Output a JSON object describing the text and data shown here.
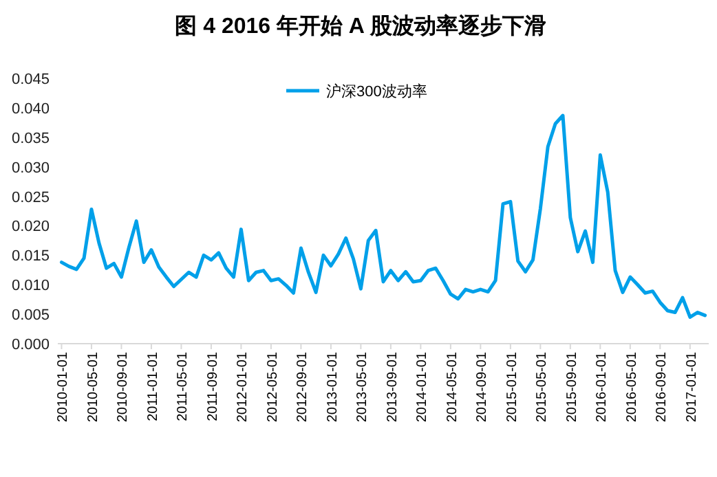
{
  "chart_data": {
    "type": "line",
    "title": "图 4 2016 年开始 A 股波动率逐步下滑",
    "categories": [
      "2010-01-01",
      null,
      null,
      null,
      "2010-05-01",
      null,
      null,
      null,
      "2010-09-01",
      null,
      null,
      null,
      "2011-01-01",
      null,
      null,
      null,
      "2011-05-01",
      null,
      null,
      null,
      "2011-09-01",
      null,
      null,
      null,
      "2012-01-01",
      null,
      null,
      null,
      "2012-05-01",
      null,
      null,
      null,
      "2012-09-01",
      null,
      null,
      null,
      "2013-01-01",
      null,
      null,
      null,
      "2013-05-01",
      null,
      null,
      null,
      "2013-09-01",
      null,
      null,
      null,
      "2014-01-01",
      null,
      null,
      null,
      "2014-05-01",
      null,
      null,
      null,
      "2014-09-01",
      null,
      null,
      null,
      "2015-01-01",
      null,
      null,
      null,
      "2015-05-01",
      null,
      null,
      null,
      "2015-09-01",
      null,
      null,
      null,
      "2016-01-01",
      null,
      null,
      null,
      "2016-05-01",
      null,
      null,
      null,
      "2016-09-01",
      null,
      null,
      null,
      "2017-01-01",
      null,
      null
    ],
    "series": [
      {
        "name": "沪深300波动率",
        "color": "#00a0e9",
        "values": [
          0.0138,
          0.0131,
          0.0126,
          0.0145,
          0.0228,
          0.0171,
          0.0128,
          0.0136,
          0.0113,
          0.0163,
          0.0208,
          0.0138,
          0.0159,
          0.013,
          0.0113,
          0.0097,
          0.0109,
          0.0121,
          0.0113,
          0.015,
          0.0142,
          0.0154,
          0.0128,
          0.0113,
          0.0194,
          0.0107,
          0.0121,
          0.0124,
          0.0107,
          0.011,
          0.0099,
          0.0086,
          0.0162,
          0.0121,
          0.0087,
          0.015,
          0.0132,
          0.0152,
          0.0179,
          0.0144,
          0.0093,
          0.0175,
          0.0192,
          0.0105,
          0.0124,
          0.0107,
          0.0122,
          0.0105,
          0.0107,
          0.0124,
          0.0128,
          0.0107,
          0.0084,
          0.0076,
          0.0092,
          0.0088,
          0.0092,
          0.0088,
          0.0107,
          0.0237,
          0.0241,
          0.014,
          0.0122,
          0.0142,
          0.0229,
          0.0334,
          0.0373,
          0.0387,
          0.0214,
          0.0156,
          0.0191,
          0.0138,
          0.032,
          0.0257,
          0.0124,
          0.0087,
          0.0113,
          0.01,
          0.0086,
          0.0089,
          0.007,
          0.0056,
          0.0053,
          0.0078,
          0.0045,
          0.0053,
          0.0048
        ]
      }
    ],
    "ylim": [
      0,
      0.045
    ],
    "yticks": [
      {
        "value": 0,
        "label": "0.000"
      },
      {
        "value": 0.005,
        "label": "0.005"
      },
      {
        "value": 0.01,
        "label": "0.010"
      },
      {
        "value": 0.015,
        "label": "0.015"
      },
      {
        "value": 0.02,
        "label": "0.020"
      },
      {
        "value": 0.025,
        "label": "0.025"
      },
      {
        "value": 0.03,
        "label": "0.030"
      },
      {
        "value": 0.035,
        "label": "0.035"
      },
      {
        "value": 0.04,
        "label": "0.040"
      },
      {
        "value": 0.045,
        "label": "0.045"
      }
    ],
    "legend": "top"
  }
}
